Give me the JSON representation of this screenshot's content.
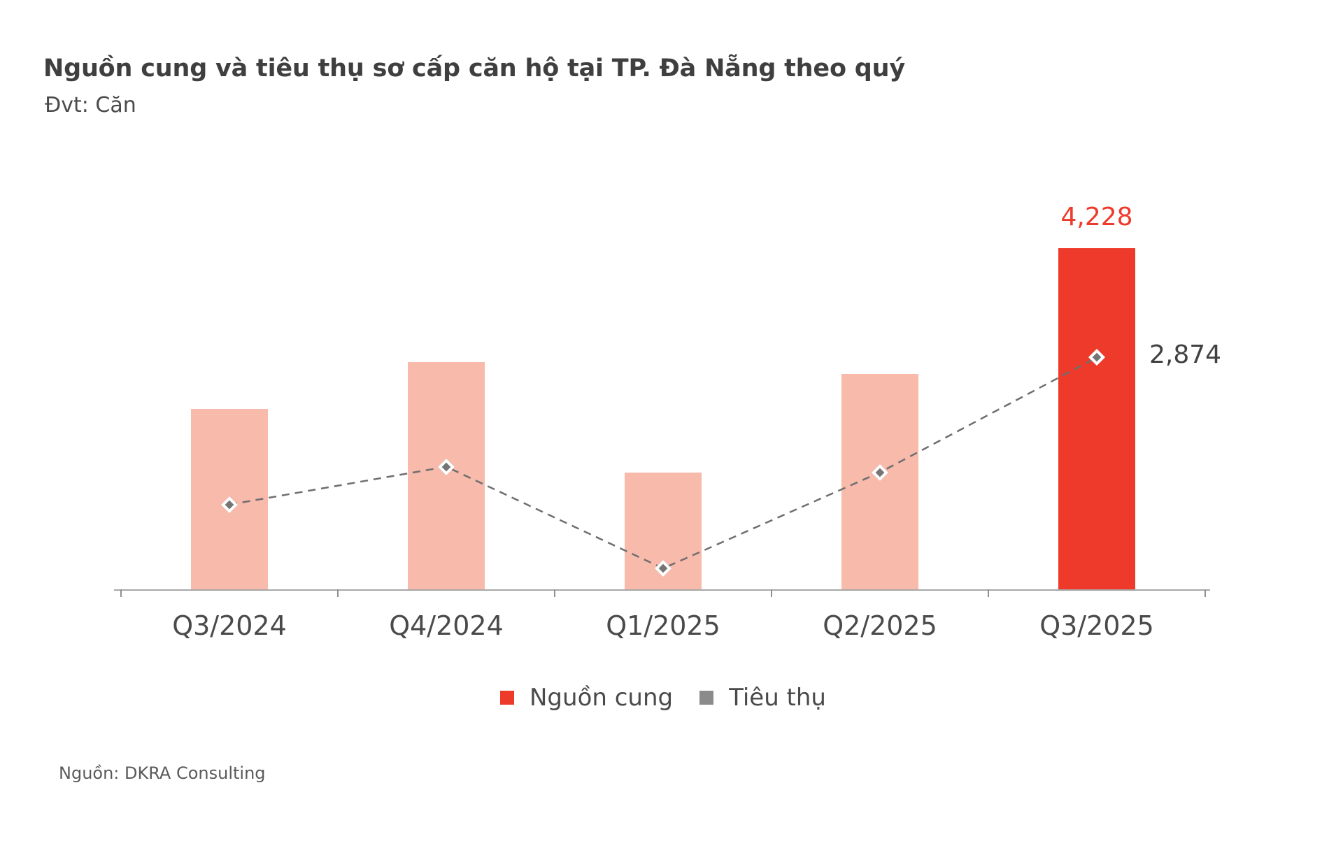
{
  "header": {
    "title": "Nguồn cung và tiêu thụ sơ cấp căn hộ tại TP. Đà Nẵng theo quý",
    "unit_label": "Đvt: Căn"
  },
  "legend": {
    "items": [
      {
        "label": "Nguồn cung",
        "color": "#ee3a2b"
      },
      {
        "label": "Tiêu thụ",
        "color": "#8b8b8b"
      }
    ]
  },
  "footer": {
    "source": "Nguồn: DKRA Consulting"
  },
  "colors": {
    "bar_highlight": "#ee3a2b",
    "bar_muted": "#f8baab",
    "marker_fill": "#757575",
    "marker_border": "#ffffff",
    "dashed_line": "#6f6f6f",
    "axis": "#a8a8a8",
    "text_dark": "#3f3f3f",
    "value_label_red": "#ee3a2b",
    "value_label_dark": "#414141"
  },
  "chart_data": {
    "type": "bar",
    "categories": [
      "Q3/2024",
      "Q4/2024",
      "Q1/2025",
      "Q2/2025",
      "Q3/2025"
    ],
    "series": [
      {
        "name": "Nguồn cung",
        "type": "bar",
        "values": [
          2240,
          2820,
          1450,
          2670,
          4228
        ],
        "data_labels": [
          null,
          null,
          null,
          null,
          "4,228"
        ],
        "highlight_index": 4
      },
      {
        "name": "Tiêu thụ",
        "type": "line",
        "line_style": "dashed",
        "marker": "diamond",
        "values": [
          1050,
          1520,
          260,
          1450,
          2874
        ],
        "data_labels": [
          null,
          null,
          null,
          null,
          "2,874"
        ]
      }
    ],
    "title": "Nguồn cung và tiêu thụ sơ cấp căn hộ tại TP. Đà Nẵng theo quý",
    "xlabel": "",
    "ylabel": "Căn",
    "ylim": [
      0,
      5200
    ],
    "grid": false,
    "legend_position": "bottom"
  }
}
